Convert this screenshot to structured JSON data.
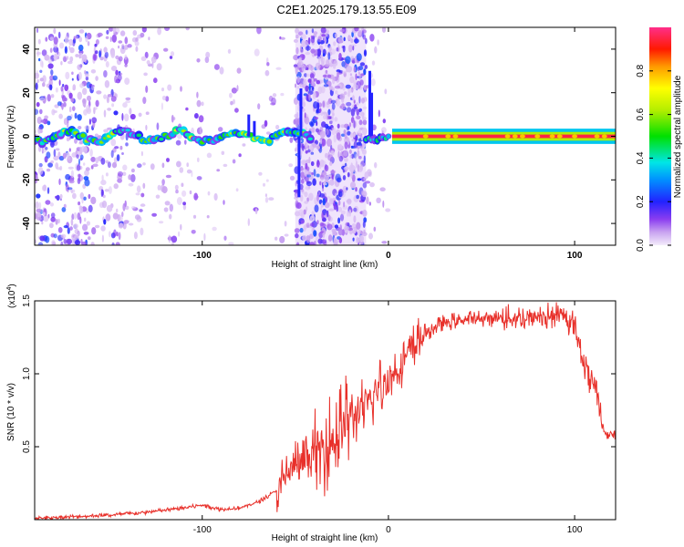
{
  "title": "C2E1.2025.179.13.55.E09",
  "chart_data": [
    {
      "type": "heatmap",
      "xlabel": "Height of straight line (km)",
      "ylabel": "Frequency (Hz)",
      "xlim": [
        -190,
        122
      ],
      "ylim": [
        -50,
        50
      ],
      "xticks": [
        -100,
        0,
        100
      ],
      "yticks": [
        -40,
        -20,
        0,
        20,
        40
      ],
      "colorbar": {
        "label": "Normalized spectral amplitude",
        "range": [
          0,
          1
        ],
        "ticks": [
          "0.0",
          "0.2",
          "0.4",
          "0.6",
          "0.8"
        ],
        "tick_values": [
          0.0,
          0.2,
          0.4,
          0.6,
          0.8
        ]
      },
      "regions": [
        {
          "x": [
            -190,
            -42
          ],
          "desc_freq_hz": 0,
          "noise": "medium",
          "main_amplitude": 0.5
        },
        {
          "x": [
            -50,
            -12
          ],
          "desc_freq_hz": 0,
          "noise": "high",
          "main_amplitude": 0.2
        },
        {
          "x": [
            -12,
            0
          ],
          "desc_freq_hz": 0,
          "noise": "low",
          "main_amplitude": 0.4
        },
        {
          "x": [
            0,
            122
          ],
          "desc_freq_hz": 0,
          "noise": "none",
          "main_amplitude": 0.9
        }
      ]
    },
    {
      "type": "line",
      "xlabel": "Height of straight line (km)",
      "ylabel": "SNR (10 * v/v)",
      "scale_note": "(x10",
      "scale_exp": "4",
      "scale_close": ")",
      "xlim": [
        -190,
        122
      ],
      "ylim": [
        0,
        1.5
      ],
      "xticks": [
        -100,
        0,
        100
      ],
      "yticks": [
        "0.5",
        "1.0",
        "1.5"
      ],
      "ytick_values": [
        0.5,
        1.0,
        1.5
      ],
      "color": "#e8302a",
      "series": [
        {
          "x": [
            -190,
            -170,
            -150,
            -130,
            -110,
            -100,
            -90,
            -80,
            -70,
            -60,
            -55,
            -50,
            -45,
            -40,
            -35,
            -30,
            -25,
            -20,
            -15,
            -10,
            -5,
            0,
            5,
            10,
            15,
            20,
            25,
            30,
            40,
            50,
            60,
            70,
            80,
            90,
            95,
            100,
            103,
            105,
            108,
            110,
            112,
            114,
            116,
            118,
            120,
            122
          ],
          "values": [
            0.01,
            0.02,
            0.03,
            0.05,
            0.08,
            0.1,
            0.07,
            0.08,
            0.12,
            0.2,
            0.3,
            0.38,
            0.4,
            0.45,
            0.5,
            0.55,
            0.62,
            0.7,
            0.75,
            0.8,
            0.9,
            0.95,
            1.05,
            1.12,
            1.2,
            1.28,
            1.32,
            1.35,
            1.37,
            1.38,
            1.38,
            1.38,
            1.39,
            1.4,
            1.38,
            1.33,
            1.2,
            1.05,
            0.98,
            0.95,
            0.9,
            0.7,
            0.6,
            0.57,
            0.58,
            0.58
          ]
        }
      ]
    }
  ]
}
